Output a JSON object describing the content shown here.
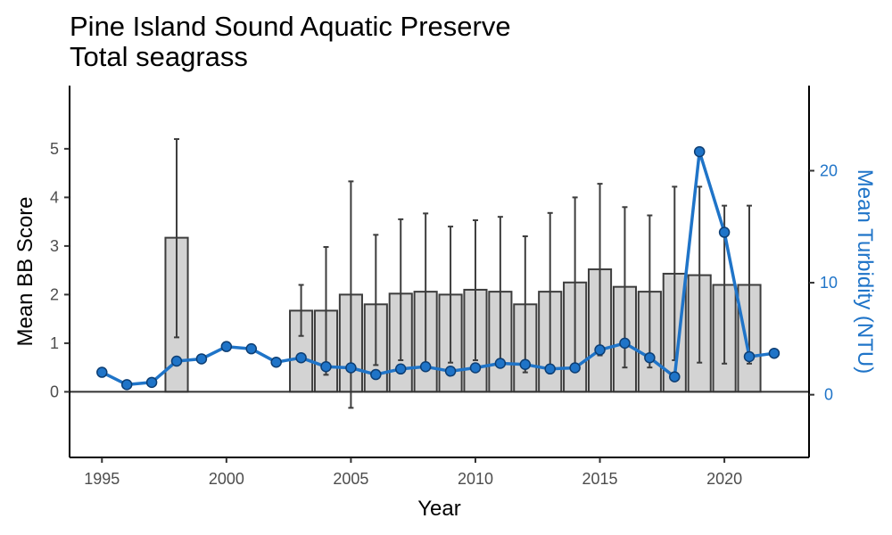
{
  "chart_data": {
    "type": "bar",
    "title": "Pine Island Sound Aquatic Preserve",
    "subtitle": "Total seagrass",
    "xlabel": "Year",
    "ylabel": "Mean BB Score",
    "y2label": "Mean Turbidity (NTU)",
    "xlim": [
      1993.7,
      2023.4
    ],
    "ylim": [
      -1.35,
      6.3
    ],
    "y2lim": [
      -5.6,
      27.6
    ],
    "x_ticks": [
      1995,
      2000,
      2005,
      2010,
      2015,
      2020
    ],
    "y_ticks": [
      0,
      1,
      2,
      3,
      4,
      5
    ],
    "y2_ticks": [
      0,
      10,
      20
    ],
    "colors": {
      "bar_fill": "#d3d3d3",
      "bar_edge": "#3d3d3d",
      "line": "#1f74c8",
      "point_edge": "#0d3e73",
      "right_axis_text": "#1f74c8"
    },
    "bars": {
      "name": "Mean BB Score",
      "x": [
        1998,
        2003,
        2004,
        2005,
        2006,
        2007,
        2008,
        2009,
        2010,
        2011,
        2012,
        2013,
        2014,
        2015,
        2016,
        2017,
        2018,
        2019,
        2020,
        2021
      ],
      "values": [
        3.17,
        1.67,
        1.67,
        2.0,
        1.8,
        2.02,
        2.06,
        2.0,
        2.1,
        2.06,
        1.8,
        2.06,
        2.25,
        2.52,
        2.16,
        2.06,
        2.43,
        2.4,
        2.2,
        2.2
      ],
      "error_low": [
        1.12,
        1.15,
        0.35,
        -0.33,
        0.55,
        0.65,
        0.45,
        0.6,
        0.65,
        0.55,
        0.4,
        0.45,
        0.5,
        0.75,
        0.5,
        0.5,
        0.65,
        0.6,
        0.58,
        0.58
      ],
      "error_high": [
        5.2,
        2.2,
        2.98,
        4.33,
        3.23,
        3.55,
        3.67,
        3.4,
        3.53,
        3.6,
        3.2,
        3.68,
        4.0,
        4.28,
        3.8,
        3.63,
        4.22,
        4.22,
        3.83,
        3.83
      ]
    },
    "line": {
      "name": "Mean Turbidity (NTU)",
      "x": [
        1995,
        1996,
        1997,
        1998,
        1999,
        2000,
        2001,
        2002,
        2003,
        2004,
        2005,
        2006,
        2007,
        2008,
        2009,
        2010,
        2011,
        2012,
        2013,
        2014,
        2015,
        2016,
        2017,
        2018,
        2019,
        2020,
        2021,
        2022
      ],
      "values": [
        2.0,
        0.9,
        1.1,
        3.0,
        3.2,
        4.3,
        4.1,
        2.9,
        3.3,
        2.5,
        2.4,
        1.8,
        2.3,
        2.5,
        2.1,
        2.4,
        2.8,
        2.7,
        2.3,
        2.4,
        4.0,
        4.6,
        3.3,
        1.6,
        21.7,
        14.5,
        3.4,
        3.7
      ]
    }
  }
}
